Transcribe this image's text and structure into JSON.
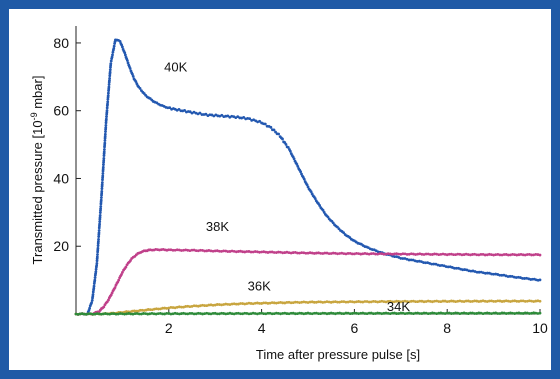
{
  "chart_data": {
    "type": "scatter",
    "xlabel": "Time after pressure pulse [s]",
    "ylabel_parts": {
      "pre": "Transmitted pressure [10",
      "exp": "-9",
      "post": " mbar]"
    },
    "xlim": [
      0,
      10
    ],
    "ylim": [
      0,
      85
    ],
    "xticks": [
      2,
      4,
      6,
      8,
      10
    ],
    "yticks": [
      20,
      40,
      60,
      80
    ],
    "grid": false,
    "legend": "inline labels",
    "series": [
      {
        "name": "40K",
        "color": "#2358b0",
        "x": [
          0,
          0.25,
          0.35,
          0.45,
          0.55,
          0.65,
          0.75,
          0.85,
          0.95,
          1.05,
          1.15,
          1.25,
          1.35,
          1.5,
          1.7,
          1.9,
          2.1,
          2.3,
          2.5,
          2.8,
          3.1,
          3.4,
          3.7,
          4.0,
          4.2,
          4.4,
          4.6,
          4.8,
          5.0,
          5.2,
          5.4,
          5.6,
          5.8,
          6.0,
          6.3,
          6.6,
          7.0,
          7.4,
          7.8,
          8.2,
          8.6,
          9.0,
          9.4,
          9.8,
          10.0
        ],
        "y": [
          0,
          0,
          4,
          15,
          35,
          57,
          74,
          81,
          80.5,
          77,
          73,
          69.5,
          67,
          64.5,
          62.5,
          61.2,
          60.5,
          60,
          59.5,
          58.8,
          58.5,
          58.2,
          57.7,
          56.5,
          55,
          52.5,
          48.5,
          43,
          37.5,
          33,
          29,
          26,
          23.5,
          21.5,
          19.5,
          18,
          16.5,
          15.5,
          14.5,
          13.5,
          12.5,
          11.8,
          11,
          10.3,
          10
        ]
      },
      {
        "name": "38K",
        "color": "#c0408a",
        "x": [
          0,
          0.35,
          0.5,
          0.6,
          0.7,
          0.8,
          0.9,
          1.0,
          1.1,
          1.2,
          1.3,
          1.4,
          1.5,
          1.6,
          1.8,
          2.0,
          2.5,
          3.0,
          4.0,
          5.0,
          6.0,
          7.0,
          8.0,
          9.0,
          10.0
        ],
        "y": [
          0,
          0,
          0.8,
          2.2,
          4.2,
          6.8,
          9.5,
          12.3,
          14.5,
          16.3,
          17.5,
          18.3,
          18.7,
          18.9,
          19,
          18.9,
          18.8,
          18.6,
          18.3,
          18,
          17.8,
          17.7,
          17.6,
          17.5,
          17.5
        ]
      },
      {
        "name": "36K",
        "color": "#c8a53f",
        "x": [
          0,
          0.5,
          0.8,
          1.0,
          1.3,
          1.6,
          2.0,
          2.5,
          3.0,
          3.5,
          4.0,
          5.0,
          6.0,
          7.0,
          8.0,
          9.0,
          10.0
        ],
        "y": [
          0,
          0,
          0.2,
          0.5,
          0.9,
          1.3,
          1.8,
          2.3,
          2.7,
          3.0,
          3.2,
          3.5,
          3.6,
          3.7,
          3.75,
          3.8,
          3.8
        ]
      },
      {
        "name": "34K",
        "color": "#2e8b3a",
        "x": [
          0,
          1,
          2,
          3,
          4,
          5,
          6,
          7,
          8,
          9,
          10
        ],
        "y": [
          0,
          0.05,
          0.1,
          0.12,
          0.15,
          0.17,
          0.2,
          0.2,
          0.22,
          0.22,
          0.25
        ]
      }
    ]
  }
}
